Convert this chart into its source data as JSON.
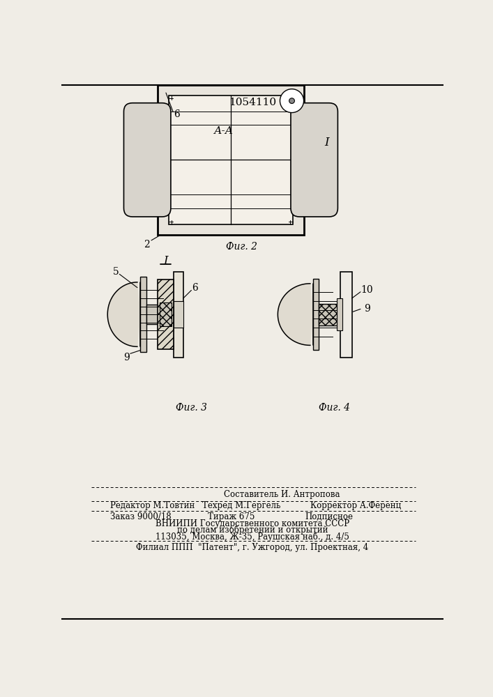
{
  "patent_number": "1054110",
  "bg": "#f0ede6",
  "fig2_label": "Фиг. 2",
  "fig3_label": "Фиг. 3",
  "fig4_label": "Фиг. 4",
  "section_label": "А-А",
  "marker_I": "I",
  "footer1": "Составитель И. Антропова",
  "footer2a": "Редактор М.Товтин",
  "footer2b": "Техред М.Гергель",
  "footer2c": "Корректор А.Ференц",
  "footer3a": "Заказ 9000/18",
  "footer3b": "Тираж 675",
  "footer3c": "Подписное",
  "footer4": "ВНИИПИ Государственного комитета СССР",
  "footer5": "по делам изобретений и открытий",
  "footer6": "113035, Москва, Ж-35, Раушская наб., д. 4/5",
  "footer7": "Филиал ППП  \"Патент\", г. Ужгород, ул. Проектная, 4"
}
